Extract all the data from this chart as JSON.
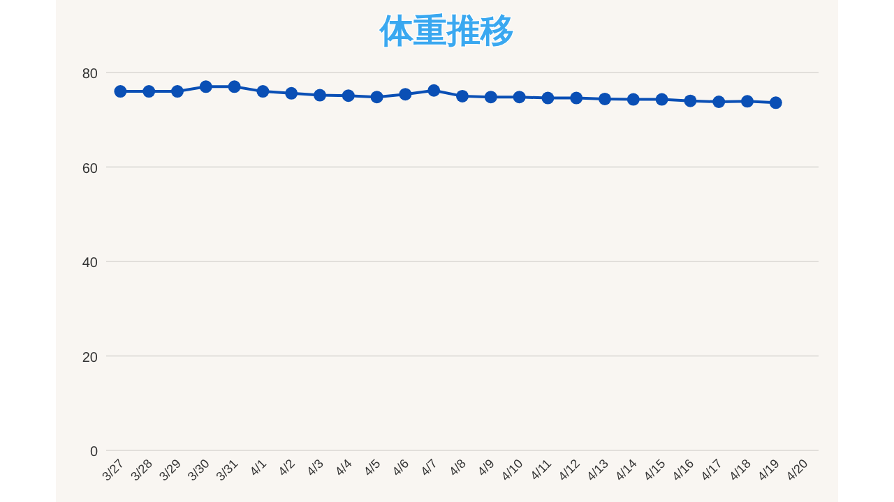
{
  "chart_data": {
    "type": "line",
    "title": "体重推移",
    "categories": [
      "3/27",
      "3/28",
      "3/29",
      "3/30",
      "3/31",
      "4/1",
      "4/2",
      "4/3",
      "4/4",
      "4/5",
      "4/6",
      "4/7",
      "4/8",
      "4/9",
      "4/10",
      "4/11",
      "4/12",
      "4/13",
      "4/14",
      "4/15",
      "4/16",
      "4/17",
      "4/18",
      "4/19",
      "4/20"
    ],
    "series": [
      {
        "color": "#0a4fb5",
        "values": [
          76,
          76,
          76,
          77,
          77,
          76,
          75.6,
          75.2,
          75.1,
          74.8,
          75.4,
          76.2,
          75,
          74.8,
          74.8,
          74.6,
          74.6,
          74.4,
          74.3,
          74.3,
          74,
          73.8,
          73.9,
          73.6,
          null
        ]
      }
    ],
    "ylim": [
      0,
      80
    ],
    "yticks": [
      0,
      20,
      40,
      60,
      80
    ],
    "grid": "y",
    "marker": "circle",
    "line_style": "solid"
  }
}
